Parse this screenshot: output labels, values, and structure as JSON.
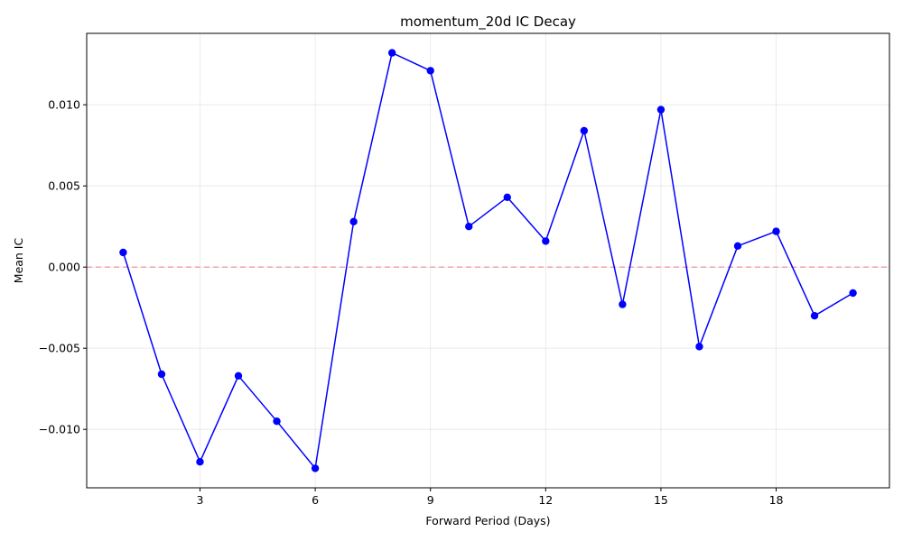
{
  "chart_data": {
    "type": "line",
    "title": "momentum_20d IC Decay",
    "xlabel": "Forward Period (Days)",
    "ylabel": "Mean IC",
    "x": [
      1,
      2,
      3,
      4,
      5,
      6,
      7,
      8,
      9,
      10,
      11,
      12,
      13,
      14,
      15,
      16,
      17,
      18,
      19,
      20
    ],
    "series": [
      {
        "values": [
          0.0009,
          -0.0066,
          -0.012,
          -0.0067,
          -0.0095,
          -0.0124,
          0.0028,
          0.0132,
          0.0121,
          0.0025,
          0.0043,
          0.0016,
          0.0084,
          -0.0023,
          0.0097,
          -0.0049,
          0.0013,
          0.0022,
          -0.003,
          -0.0016
        ],
        "color": "#0000ff",
        "marker": "circle"
      }
    ],
    "xlim": [
      0.05,
      20.95
    ],
    "ylim": [
      -0.0136,
      0.0144
    ],
    "x_ticks": [
      3,
      6,
      9,
      12,
      15,
      18
    ],
    "x_tick_labels": [
      "3",
      "6",
      "9",
      "12",
      "15",
      "18"
    ],
    "y_ticks": [
      -0.01,
      -0.005,
      0.0,
      0.005,
      0.01
    ],
    "y_tick_labels": [
      "−0.010",
      "−0.005",
      "0.000",
      "0.005",
      "0.010"
    ],
    "reference_line": {
      "y": 0,
      "style": "dashed",
      "color": "#f4a3a8"
    },
    "grid": true,
    "legend": "none"
  }
}
